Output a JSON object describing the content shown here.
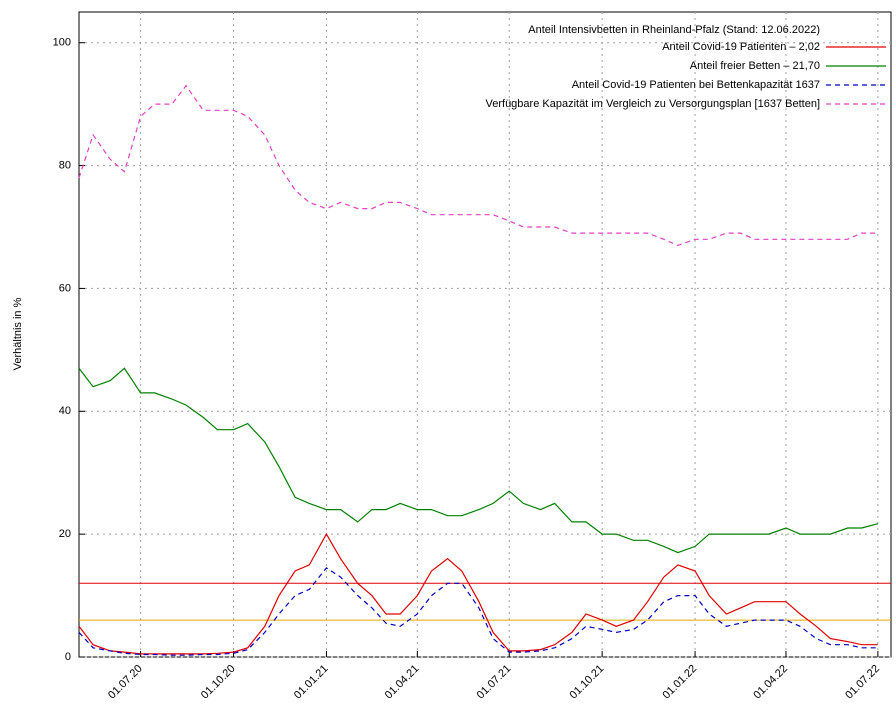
{
  "chart_data": {
    "type": "line",
    "ylabel": "Verhältnis in %",
    "legend_title": "Anteil Intensivbetten in Rheinland-Pfalz (Stand: 12.06.2022)",
    "legend": "upper right",
    "grid": true,
    "x": [
      "01.05.20",
      "15.05.20",
      "01.06.20",
      "15.06.20",
      "01.07.20",
      "15.07.20",
      "01.08.20",
      "15.08.20",
      "01.09.20",
      "15.09.20",
      "01.10.20",
      "15.10.20",
      "01.11.20",
      "15.11.20",
      "01.12.20",
      "15.12.20",
      "01.01.21",
      "15.01.21",
      "01.02.21",
      "15.02.21",
      "01.03.21",
      "15.03.21",
      "01.04.21",
      "15.04.21",
      "01.05.21",
      "15.05.21",
      "01.06.21",
      "15.06.21",
      "01.07.21",
      "15.07.21",
      "01.08.21",
      "15.08.21",
      "01.09.21",
      "15.09.21",
      "01.10.21",
      "15.10.21",
      "01.11.21",
      "15.11.21",
      "01.12.21",
      "15.12.21",
      "01.01.22",
      "15.01.22",
      "01.02.22",
      "15.02.22",
      "01.03.22",
      "15.03.22",
      "01.04.22",
      "15.04.22",
      "01.05.22",
      "15.05.22",
      "01.06.22",
      "15.06.22",
      "01.07.22"
    ],
    "xlim": [
      "01.05.20",
      "14.07.22"
    ],
    "xticks": [
      "01.07.20",
      "01.10.20",
      "01.01.21",
      "01.04.21",
      "01.07.21",
      "01.10.21",
      "01.01.22",
      "01.04.22",
      "01.07.22"
    ],
    "ylim": [
      0,
      105
    ],
    "yticks": [
      0,
      20,
      40,
      60,
      80,
      100
    ],
    "reference_lines": [
      {
        "value": 12,
        "color": "#e00000"
      },
      {
        "value": 6,
        "color": "#e8a800"
      }
    ],
    "series": [
      {
        "name": "Anteil Covid-19 Patienten – 2,02",
        "color": "#e00000",
        "dash": false,
        "values": [
          5,
          2,
          1,
          0.8,
          0.5,
          0.5,
          0.5,
          0.5,
          0.5,
          0.6,
          0.8,
          1.5,
          5,
          10,
          14,
          15,
          20,
          16,
          12,
          10,
          7,
          7,
          10,
          14,
          16,
          14,
          9,
          4,
          1,
          1,
          1.2,
          2,
          4,
          7,
          6,
          5,
          6,
          9,
          13,
          15,
          14,
          10,
          7,
          8,
          9,
          9,
          9,
          7,
          5,
          3,
          2.5,
          2,
          2
        ]
      },
      {
        "name": "Anteil freier Betten –  21,70",
        "color": "#008000",
        "dash": false,
        "values": [
          47,
          44,
          45,
          47,
          43,
          43,
          42,
          41,
          39,
          37,
          37,
          38,
          35,
          31,
          26,
          25,
          24,
          24,
          22,
          24,
          24,
          25,
          24,
          24,
          23,
          23,
          24,
          25,
          27,
          25,
          24,
          25,
          22,
          22,
          20,
          20,
          19,
          19,
          18,
          17,
          18,
          20,
          20,
          20,
          20,
          20,
          21,
          20,
          20,
          20,
          21,
          21,
          21.7
        ]
      },
      {
        "name": "Anteil Covid-19 Patienten bei Bettenkapazität 1637",
        "color": "#0000c0",
        "dash": true,
        "values": [
          4,
          1.5,
          1,
          0.6,
          0.4,
          0.4,
          0.3,
          0.3,
          0.4,
          0.4,
          0.6,
          1.2,
          4,
          7,
          10,
          11,
          14.5,
          13,
          10,
          8,
          5.5,
          5,
          7,
          10,
          12,
          12,
          8,
          3,
          0.8,
          0.8,
          1,
          1.5,
          3,
          5,
          4.5,
          4,
          4.5,
          6,
          9,
          10,
          10,
          7,
          5,
          5.5,
          6,
          6,
          6,
          5,
          3,
          2,
          2,
          1.5,
          1.5
        ]
      },
      {
        "name": "Verfügbare Kapazität im Vergleich zu Versorgungsplan [1637 Betten]",
        "color": "#e040c0",
        "dash": true,
        "values": [
          78,
          85,
          81,
          79,
          88,
          90,
          90,
          93,
          89,
          89,
          89,
          88,
          85,
          80,
          76,
          74,
          73,
          74,
          73,
          73,
          74,
          74,
          73,
          72,
          72,
          72,
          72,
          72,
          71,
          70,
          70,
          70,
          69,
          69,
          69,
          69,
          69,
          69,
          68,
          67,
          68,
          68,
          69,
          69,
          68,
          68,
          68,
          68,
          68,
          68,
          68,
          69,
          69
        ]
      }
    ]
  }
}
